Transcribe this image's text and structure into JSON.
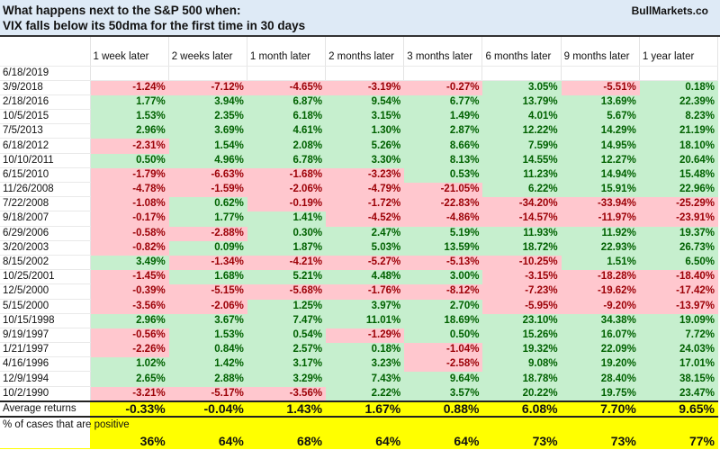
{
  "chart_data": {
    "type": "table",
    "title": "What happens next to the S&P 500 when:",
    "subtitle": "VIX falls below its 50dma for the first time in 30 days",
    "brand": "BullMarkets.co",
    "columns": [
      "1 week later",
      "2 weeks later",
      "1 month later",
      "2 months later",
      "3 months later",
      "6 months later",
      "9 months later",
      "1 year later"
    ],
    "rows": [
      {
        "date": "6/18/2019",
        "values": [
          "",
          "",
          "",
          "",
          "",
          "",
          "",
          ""
        ]
      },
      {
        "date": "3/9/2018",
        "values": [
          "-1.24%",
          "-7.12%",
          "-4.65%",
          "-3.19%",
          "-0.27%",
          "3.05%",
          "-5.51%",
          "0.18%"
        ]
      },
      {
        "date": "2/18/2016",
        "values": [
          "1.77%",
          "3.94%",
          "6.87%",
          "9.54%",
          "6.77%",
          "13.79%",
          "13.69%",
          "22.39%"
        ]
      },
      {
        "date": "10/5/2015",
        "values": [
          "1.53%",
          "2.35%",
          "6.18%",
          "3.15%",
          "1.49%",
          "4.01%",
          "5.67%",
          "8.23%"
        ]
      },
      {
        "date": "7/5/2013",
        "values": [
          "2.96%",
          "3.69%",
          "4.61%",
          "1.30%",
          "2.87%",
          "12.22%",
          "14.29%",
          "21.19%"
        ]
      },
      {
        "date": "6/18/2012",
        "values": [
          "-2.31%",
          "1.54%",
          "2.08%",
          "5.26%",
          "8.66%",
          "7.59%",
          "14.95%",
          "18.10%"
        ]
      },
      {
        "date": "10/10/2011",
        "values": [
          "0.50%",
          "4.96%",
          "6.78%",
          "3.30%",
          "8.13%",
          "14.55%",
          "12.27%",
          "20.64%"
        ]
      },
      {
        "date": "6/15/2010",
        "values": [
          "-1.79%",
          "-6.63%",
          "-1.68%",
          "-3.23%",
          "0.53%",
          "11.23%",
          "14.94%",
          "15.48%"
        ]
      },
      {
        "date": "11/26/2008",
        "values": [
          "-4.78%",
          "-1.59%",
          "-2.06%",
          "-4.79%",
          "-21.05%",
          "6.22%",
          "15.91%",
          "22.96%"
        ]
      },
      {
        "date": "7/22/2008",
        "values": [
          "-1.08%",
          "0.62%",
          "-0.19%",
          "-1.72%",
          "-22.83%",
          "-34.20%",
          "-33.94%",
          "-25.29%"
        ]
      },
      {
        "date": "9/18/2007",
        "values": [
          "-0.17%",
          "1.77%",
          "1.41%",
          "-4.52%",
          "-4.86%",
          "-14.57%",
          "-11.97%",
          "-23.91%"
        ]
      },
      {
        "date": "6/29/2006",
        "values": [
          "-0.58%",
          "-2.88%",
          "0.30%",
          "2.47%",
          "5.19%",
          "11.93%",
          "11.92%",
          "19.37%"
        ]
      },
      {
        "date": "3/20/2003",
        "values": [
          "-0.82%",
          "0.09%",
          "1.87%",
          "5.03%",
          "13.59%",
          "18.72%",
          "22.93%",
          "26.73%"
        ]
      },
      {
        "date": "8/15/2002",
        "values": [
          "3.49%",
          "-1.34%",
          "-4.21%",
          "-5.27%",
          "-5.13%",
          "-10.25%",
          "1.51%",
          "6.50%"
        ]
      },
      {
        "date": "10/25/2001",
        "values": [
          "-1.45%",
          "1.68%",
          "5.21%",
          "4.48%",
          "3.00%",
          "-3.15%",
          "-18.28%",
          "-18.40%"
        ]
      },
      {
        "date": "12/5/2000",
        "values": [
          "-0.39%",
          "-5.15%",
          "-5.68%",
          "-1.76%",
          "-8.12%",
          "-7.23%",
          "-19.62%",
          "-17.42%"
        ]
      },
      {
        "date": "5/15/2000",
        "values": [
          "-3.56%",
          "-2.06%",
          "1.25%",
          "3.97%",
          "2.70%",
          "-5.95%",
          "-9.20%",
          "-13.97%"
        ]
      },
      {
        "date": "10/15/1998",
        "values": [
          "2.96%",
          "3.67%",
          "7.47%",
          "11.01%",
          "18.69%",
          "23.10%",
          "34.38%",
          "19.09%"
        ]
      },
      {
        "date": "9/19/1997",
        "values": [
          "-0.56%",
          "1.53%",
          "0.54%",
          "-1.29%",
          "0.50%",
          "15.26%",
          "16.07%",
          "7.72%"
        ]
      },
      {
        "date": "1/21/1997",
        "values": [
          "-2.26%",
          "0.84%",
          "2.57%",
          "0.18%",
          "-1.04%",
          "19.32%",
          "22.09%",
          "24.03%"
        ]
      },
      {
        "date": "4/16/1996",
        "values": [
          "1.02%",
          "1.42%",
          "3.17%",
          "3.23%",
          "-2.58%",
          "9.08%",
          "19.20%",
          "17.01%"
        ]
      },
      {
        "date": "12/9/1994",
        "values": [
          "2.65%",
          "2.88%",
          "3.29%",
          "7.43%",
          "9.64%",
          "18.78%",
          "28.40%",
          "38.15%"
        ]
      },
      {
        "date": "10/2/1990",
        "values": [
          "-3.21%",
          "-5.17%",
          "-3.56%",
          "2.22%",
          "3.57%",
          "20.22%",
          "19.75%",
          "23.47%"
        ]
      }
    ],
    "average_label": "Average returns",
    "average": [
      "-0.33%",
      "-0.04%",
      "1.43%",
      "1.67%",
      "0.88%",
      "6.08%",
      "7.70%",
      "9.65%"
    ],
    "positive_label": "% of cases that are positive",
    "positive": [
      "36%",
      "64%",
      "68%",
      "64%",
      "64%",
      "73%",
      "73%",
      "77%"
    ],
    "colors": {
      "pos_bg": "#c6efce",
      "pos_fg": "#006100",
      "neg_bg": "#ffc7ce",
      "neg_fg": "#9c0006",
      "summary_bg": "#ffff00",
      "title_bg": "#deeaf6"
    }
  }
}
